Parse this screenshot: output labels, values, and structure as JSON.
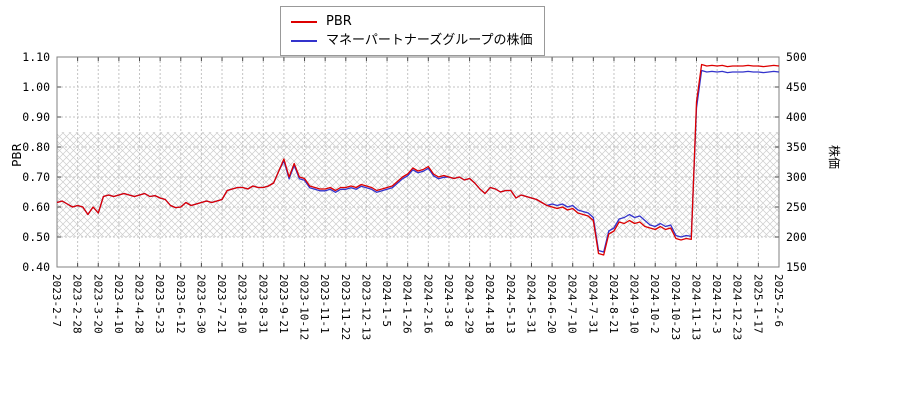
{
  "legend": {
    "items": [
      {
        "label": "PBR",
        "color": "#dd0000"
      },
      {
        "label": "マネーパートナーズグループの株価",
        "color": "#3333cc"
      }
    ]
  },
  "chart_data": {
    "type": "line",
    "grid": true,
    "legend_position": "top-center",
    "x_label_rotation": 90,
    "x_tick_labels": [
      "2023-2-7",
      "2023-2-28",
      "2023-3-20",
      "2023-4-10",
      "2023-4-28",
      "2023-5-23",
      "2023-6-12",
      "2023-6-30",
      "2023-7-21",
      "2023-8-10",
      "2023-8-31",
      "2023-9-21",
      "2023-10-12",
      "2023-11-1",
      "2023-11-22",
      "2023-12-13",
      "2024-1-5",
      "2024-1-26",
      "2024-2-16",
      "2024-3-8",
      "2024-3-29",
      "2024-4-18",
      "2024-5-13",
      "2024-5-31",
      "2024-6-20",
      "2024-7-10",
      "2024-7-31",
      "2024-8-21",
      "2024-9-10",
      "2024-10-2",
      "2024-10-23",
      "2024-11-13",
      "2024-12-3",
      "2024-12-23",
      "2025-1-17",
      "2025-2-6"
    ],
    "points_per_interval": 4,
    "left_axis": {
      "label": "PBR",
      "min": 0.4,
      "max": 1.1,
      "tick_labels": [
        "0.40",
        "0.50",
        "0.60",
        "0.70",
        "0.80",
        "0.90",
        "1.00",
        "1.10"
      ]
    },
    "right_axis": {
      "label": "株価",
      "min": 150,
      "max": 500,
      "tick_labels": [
        "150",
        "200",
        "250",
        "300",
        "350",
        "400",
        "450",
        "500"
      ]
    },
    "hatch_band": {
      "from": 0.5,
      "to": 0.85,
      "color": "#cccccc"
    },
    "series": [
      {
        "name": "PBR",
        "axis": "left",
        "color": "#dd0000",
        "values": [
          0.615,
          0.62,
          0.61,
          0.6,
          0.605,
          0.6,
          0.575,
          0.6,
          0.58,
          0.635,
          0.64,
          0.635,
          0.64,
          0.645,
          0.64,
          0.635,
          0.64,
          0.645,
          0.635,
          0.638,
          0.63,
          0.625,
          0.605,
          0.598,
          0.6,
          0.615,
          0.605,
          0.61,
          0.615,
          0.62,
          0.615,
          0.62,
          0.625,
          0.655,
          0.66,
          0.665,
          0.665,
          0.66,
          0.67,
          0.665,
          0.665,
          0.67,
          0.68,
          0.72,
          0.76,
          0.7,
          0.745,
          0.7,
          0.695,
          0.67,
          0.665,
          0.66,
          0.66,
          0.665,
          0.655,
          0.665,
          0.665,
          0.67,
          0.665,
          0.675,
          0.67,
          0.665,
          0.655,
          0.66,
          0.665,
          0.67,
          0.685,
          0.7,
          0.71,
          0.73,
          0.72,
          0.725,
          0.735,
          0.71,
          0.7,
          0.705,
          0.7,
          0.695,
          0.7,
          0.69,
          0.695,
          0.68,
          0.66,
          0.645,
          0.665,
          0.66,
          0.65,
          0.655,
          0.655,
          0.63,
          0.64,
          0.635,
          0.63,
          0.625,
          0.615,
          0.605,
          0.6,
          0.595,
          0.6,
          0.59,
          0.595,
          0.58,
          0.575,
          0.57,
          0.555,
          0.445,
          0.44,
          0.51,
          0.52,
          0.55,
          0.545,
          0.555,
          0.545,
          0.55,
          0.535,
          0.53,
          0.525,
          0.535,
          0.525,
          0.53,
          0.495,
          0.49,
          0.495,
          0.492,
          0.95,
          1.075,
          1.07,
          1.072,
          1.07,
          1.072,
          1.068,
          1.07,
          1.07,
          1.07,
          1.072,
          1.07,
          1.07,
          1.068,
          1.07,
          1.072,
          1.07
        ]
      },
      {
        "name": "マネーパートナーズグループの株価",
        "axis": "right",
        "color": "#3333cc",
        "values": [
          257.5,
          260,
          255,
          250,
          252.5,
          250,
          237.5,
          250,
          240,
          267.5,
          270,
          267.5,
          270,
          272.5,
          270,
          267.5,
          270,
          272.5,
          267.5,
          269,
          265,
          262.5,
          252.5,
          249,
          250,
          257.5,
          252.5,
          255,
          257.5,
          260,
          257.5,
          260,
          262.5,
          277.5,
          280,
          282.5,
          282.5,
          280,
          285,
          282.5,
          282.5,
          285,
          290,
          310,
          327,
          297,
          319.5,
          297,
          294.5,
          282,
          279.5,
          277,
          277,
          279.5,
          274.5,
          279.5,
          279.5,
          282,
          279.5,
          284.5,
          282,
          279.5,
          274.5,
          277,
          279.5,
          282,
          289.5,
          297,
          302,
          312,
          307,
          309.5,
          314.5,
          302,
          297,
          299.5,
          300,
          297.5,
          300,
          295,
          297.5,
          290,
          280,
          272.5,
          282.5,
          280,
          275,
          277.5,
          277.5,
          265,
          270,
          267.5,
          265,
          262.5,
          257.5,
          252.5,
          255,
          252.5,
          255,
          250,
          252.5,
          245,
          242.5,
          240,
          232.5,
          177.5,
          175,
          210,
          215,
          230,
          232.5,
          237.5,
          232.5,
          235,
          227.5,
          220,
          217.5,
          222.5,
          217.5,
          220,
          202.5,
          200,
          202.5,
          201,
          415,
          477.5,
          475,
          476,
          475,
          476,
          474,
          475,
          475,
          475,
          476,
          475,
          475,
          474,
          475,
          476,
          475
        ]
      }
    ]
  }
}
